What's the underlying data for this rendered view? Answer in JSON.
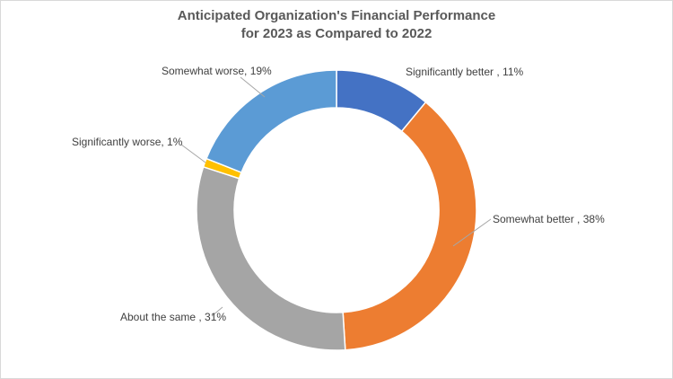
{
  "chart_data": {
    "type": "pie",
    "subtype": "doughnut",
    "title_line1": "Anticipated Organization's Financial Performance",
    "title_line2": "for 2023 as Compared to 2022",
    "slices": [
      {
        "label": "Significantly better",
        "value": 11,
        "display": "Significantly better , 11%",
        "color": "#4472C4"
      },
      {
        "label": "Somewhat better",
        "value": 38,
        "display": "Somewhat better , 38%",
        "color": "#ED7D31"
      },
      {
        "label": "About the same",
        "value": 31,
        "display": "About the same , 31%",
        "color": "#A5A5A5"
      },
      {
        "label": "Significantly worse",
        "value": 1,
        "display": "Significantly worse, 1%",
        "color": "#FFC000"
      },
      {
        "label": "Somewhat worse",
        "value": 19,
        "display": "Somewhat worse, 19%",
        "color": "#5B9BD5"
      }
    ],
    "legend": "none",
    "grid": false
  }
}
